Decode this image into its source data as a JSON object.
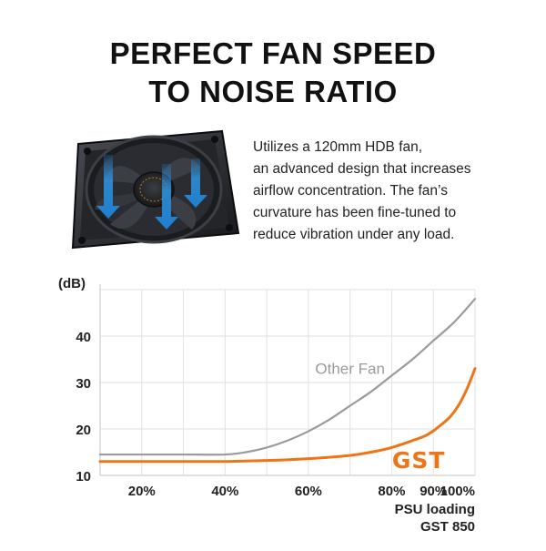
{
  "headline": {
    "line1": "PERFECT FAN SPEED",
    "line2": "TO NOISE RATIO"
  },
  "description": {
    "lines": [
      "Utilizes a 120mm HDB fan,",
      "an advanced design that increases",
      "airflow concentration. The fan’s",
      "curvature has been fine-tuned to",
      "reduce vibration under any load."
    ]
  },
  "fan_image": {
    "icon": "cooling-fan-icon",
    "arrow_color": "#2f8fd8"
  },
  "chart_data": {
    "type": "line",
    "title": "",
    "ylabel": "(dB)",
    "xlabel": "PSU loading",
    "x_sublabel": "GST 850",
    "xlim": [
      10,
      100
    ],
    "ylim": [
      10,
      50
    ],
    "yticks": [
      10,
      20,
      30,
      40
    ],
    "ytick_labels": [
      "10",
      "20",
      "30",
      "40"
    ],
    "xticks": [
      20,
      40,
      60,
      80,
      90,
      100
    ],
    "xtick_labels": [
      "20%",
      "40%",
      "60%",
      "80%",
      "90%",
      "100%"
    ],
    "grid": true,
    "series": [
      {
        "name": "Other Fan",
        "color": "#9b9b9b",
        "x": [
          10,
          20,
          30,
          40,
          45,
          50,
          55,
          60,
          65,
          70,
          75,
          80,
          85,
          90,
          95,
          100
        ],
        "y": [
          14.5,
          14.5,
          14.5,
          14.5,
          15,
          16,
          17.5,
          19.5,
          22,
          25,
          28,
          31.5,
          35,
          39,
          43,
          48
        ]
      },
      {
        "name": "GST",
        "color": "#ee7418",
        "x": [
          10,
          20,
          30,
          40,
          50,
          60,
          70,
          75,
          80,
          85,
          88,
          90,
          92,
          94,
          96,
          98,
          100
        ],
        "y": [
          13,
          13,
          13,
          13,
          13.2,
          13.6,
          14.3,
          15,
          16,
          17.5,
          18.5,
          19.6,
          21,
          22.6,
          25,
          28.5,
          33
        ]
      }
    ]
  }
}
